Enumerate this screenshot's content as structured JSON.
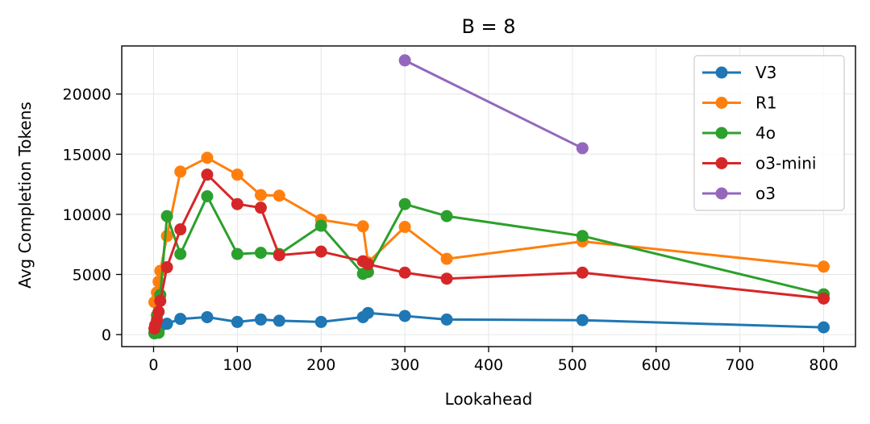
{
  "chart_data": {
    "type": "line",
    "title": "B = 8",
    "xlabel": "Lookahead",
    "ylabel": "Avg Completion Tokens",
    "xlim": [
      -38,
      838
    ],
    "ylim": [
      -1000,
      24000
    ],
    "xticks": [
      0,
      100,
      200,
      300,
      400,
      500,
      600,
      700,
      800
    ],
    "yticks": [
      0,
      5000,
      10000,
      15000,
      20000
    ],
    "grid": true,
    "legend_position": "top-right",
    "series": [
      {
        "name": "V3",
        "color": "#1f77b4",
        "x": [
          1,
          2,
          4,
          6,
          8,
          16,
          32,
          64,
          100,
          128,
          150,
          200,
          250,
          256,
          300,
          350,
          512,
          800
        ],
        "y": [
          150,
          250,
          350,
          500,
          700,
          900,
          1300,
          1450,
          1050,
          1250,
          1150,
          1050,
          1450,
          1800,
          1550,
          1250,
          1200,
          600
        ]
      },
      {
        "name": "R1",
        "color": "#ff7f0e",
        "x": [
          1,
          2,
          4,
          6,
          8,
          16,
          32,
          64,
          100,
          128,
          150,
          200,
          250,
          256,
          300,
          350,
          512,
          800
        ],
        "y": [
          2700,
          2750,
          3500,
          4400,
          5300,
          8200,
          13550,
          14700,
          13300,
          11600,
          11550,
          9550,
          9000,
          6000,
          8950,
          6300,
          7750,
          5650
        ]
      },
      {
        "name": "4o",
        "color": "#2ca02c",
        "x": [
          1,
          2,
          4,
          6,
          8,
          16,
          32,
          64,
          100,
          128,
          150,
          200,
          250,
          256,
          300,
          350,
          512,
          800
        ],
        "y": [
          100,
          200,
          1600,
          150,
          3300,
          9850,
          6700,
          11500,
          6700,
          6800,
          6700,
          9050,
          5050,
          5200,
          10850,
          9850,
          8200,
          3350
        ]
      },
      {
        "name": "o3-mini",
        "color": "#d62728",
        "x": [
          1,
          2,
          4,
          6,
          8,
          16,
          32,
          64,
          100,
          128,
          150,
          200,
          250,
          256,
          300,
          350,
          512,
          800
        ],
        "y": [
          500,
          800,
          1200,
          1900,
          2800,
          5600,
          8750,
          13300,
          10850,
          10550,
          6600,
          6900,
          6100,
          5850,
          5150,
          4650,
          5150,
          3000
        ]
      },
      {
        "name": "o3",
        "color": "#9467bd",
        "x": [
          300,
          512
        ],
        "y": [
          22800,
          15500
        ]
      }
    ]
  }
}
